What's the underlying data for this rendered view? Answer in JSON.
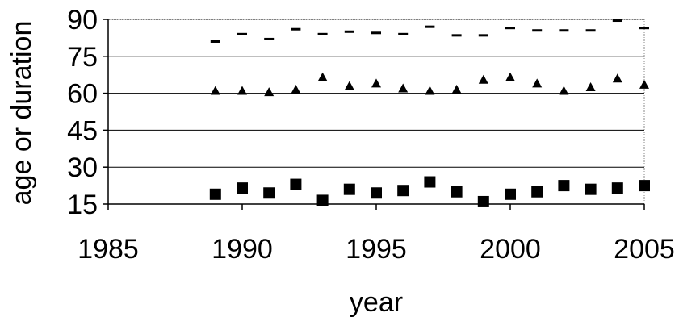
{
  "chart_data": {
    "type": "scatter",
    "title": "",
    "xlabel": "year",
    "ylabel": "age or duration",
    "xlim": [
      1985,
      2005
    ],
    "ylim": [
      15,
      90
    ],
    "xticks": [
      1985,
      1990,
      1995,
      2000,
      2005
    ],
    "yticks": [
      15,
      30,
      45,
      60,
      75,
      90
    ],
    "grid": "horizontal",
    "legend": "none",
    "series": [
      {
        "marker": "dash",
        "color": "#000000",
        "x": [
          1989,
          1990,
          1991,
          1992,
          1993,
          1994,
          1995,
          1996,
          1997,
          1998,
          1999,
          2000,
          2001,
          2002,
          2003,
          2004,
          2005
        ],
        "y": [
          81,
          84,
          82,
          86,
          84,
          85,
          84.5,
          84,
          87,
          83.5,
          83.5,
          86.5,
          85.5,
          85.5,
          85.5,
          89.5,
          86.5
        ]
      },
      {
        "marker": "triangle",
        "color": "#000000",
        "x": [
          1989,
          1990,
          1991,
          1992,
          1993,
          1994,
          1995,
          1996,
          1997,
          1998,
          1999,
          2000,
          2001,
          2002,
          2003,
          2004,
          2005
        ],
        "y": [
          61,
          61,
          60.5,
          61.5,
          66.5,
          63,
          64,
          62,
          61,
          61.5,
          65.5,
          66.5,
          64,
          61,
          62.5,
          66,
          63.5
        ]
      },
      {
        "marker": "square",
        "color": "#000000",
        "x": [
          1989,
          1990,
          1991,
          1992,
          1993,
          1994,
          1995,
          1996,
          1997,
          1998,
          1999,
          2000,
          2001,
          2002,
          2003,
          2004,
          2005
        ],
        "y": [
          19,
          21.5,
          19.5,
          23,
          16.5,
          21,
          19.5,
          20.5,
          24,
          20,
          16,
          19,
          20,
          22.5,
          21,
          21.5,
          22.5
        ]
      }
    ]
  }
}
